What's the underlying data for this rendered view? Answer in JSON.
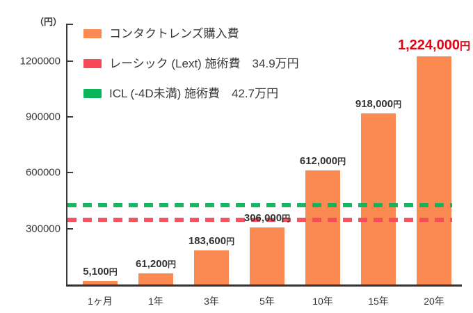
{
  "chart_data": {
    "type": "bar",
    "unit_label": "（円）",
    "categories": [
      "1ヶ月",
      "1年",
      "3年",
      "5年",
      "10年",
      "15年",
      "20年"
    ],
    "values": [
      5100,
      61200,
      183600,
      306000,
      612000,
      918000,
      1224000
    ],
    "value_amounts": [
      "5,100",
      "61,200",
      "183,600",
      "306,000",
      "612,000",
      "918,000",
      "1,224,000"
    ],
    "value_unit": "円",
    "highlight_index": 6,
    "highlight_color": "#e60012",
    "bar_color": "#fb8a52",
    "ylim": [
      0,
      1400000
    ],
    "yticks": [
      300000,
      600000,
      900000,
      1200000
    ],
    "ytick_labels": [
      "300000",
      "600000",
      "900000",
      "1200000"
    ],
    "grid": false,
    "legend_position": "top-left",
    "legend": [
      {
        "label": "コンタクトレンズ購入費",
        "color": "#fb8a52"
      },
      {
        "label": "レーシック (Lext) 施術費　34.9万円",
        "color": "#f8495a"
      },
      {
        "label": "ICL (-4D未満) 施術費　42.7万円",
        "color": "#0cb45a"
      }
    ],
    "reference_lines": [
      {
        "name": "lasik",
        "label": "レーシック (Lext) 施術費",
        "value": 349000,
        "display": "34.9万円",
        "color": "#f8495a",
        "style": "dashed"
      },
      {
        "name": "icl",
        "label": "ICL (-4D未満) 施術費",
        "value": 427000,
        "display": "42.7万円",
        "color": "#0cb45a",
        "style": "dashed"
      }
    ]
  }
}
